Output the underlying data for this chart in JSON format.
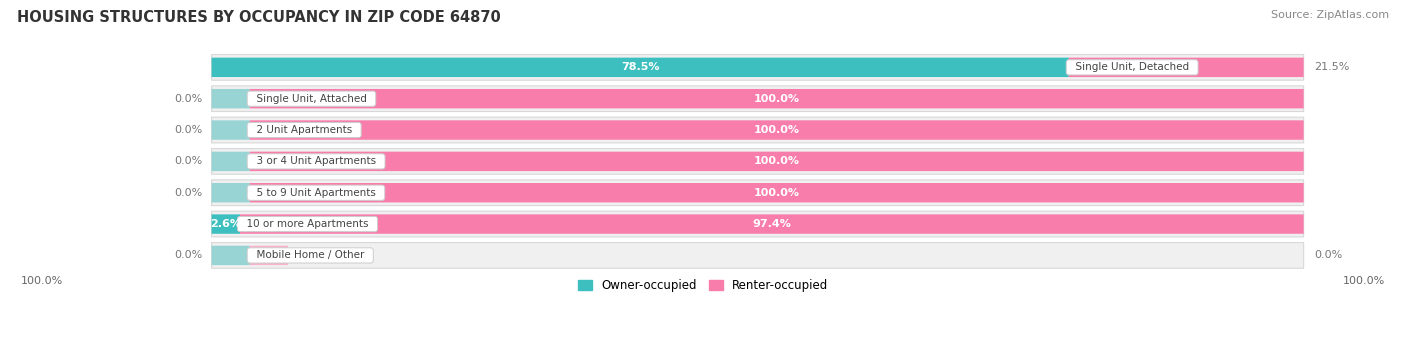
{
  "title": "HOUSING STRUCTURES BY OCCUPANCY IN ZIP CODE 64870",
  "source": "Source: ZipAtlas.com",
  "categories": [
    "Single Unit, Detached",
    "Single Unit, Attached",
    "2 Unit Apartments",
    "3 or 4 Unit Apartments",
    "5 to 9 Unit Apartments",
    "10 or more Apartments",
    "Mobile Home / Other"
  ],
  "owner_pct": [
    78.5,
    0.0,
    0.0,
    0.0,
    0.0,
    2.6,
    0.0
  ],
  "renter_pct": [
    21.5,
    100.0,
    100.0,
    100.0,
    100.0,
    97.4,
    0.0
  ],
  "owner_color": "#3dbfbf",
  "renter_color": "#f87dab",
  "owner_stub_color": "#85d0d0",
  "title_fontsize": 10.5,
  "source_fontsize": 8,
  "background_color": "#ffffff",
  "bar_height": 0.62,
  "row_bg_color": "#f0f0f0",
  "row_border_color": "#d8d8d8",
  "label_pct_owner_color_inside": "#ffffff",
  "label_pct_owner_color_outside": "#888888",
  "label_pct_renter_color_inside": "#ffffff",
  "label_pct_renter_color_outside": "#888888",
  "bottom_left_label": "100.0%",
  "bottom_right_label": "100.0%"
}
